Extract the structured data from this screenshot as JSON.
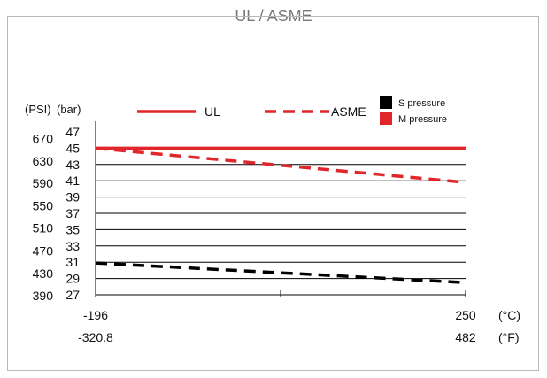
{
  "title": "UL / ASME",
  "colors": {
    "ul": "#e0262a",
    "asme": "#e0262a",
    "s_pressure": "#000000",
    "m_pressure": "#e0262a",
    "frame": "#b8b8b8"
  },
  "chart_data": {
    "type": "line",
    "title": "UL / ASME",
    "y_unit_left": "(PSI)",
    "y_unit_right": "(bar)",
    "x_unit_top": "(°C)",
    "x_unit_bottom": "(°F)",
    "x_ticks_c": [
      "-196",
      "250"
    ],
    "x_ticks_f": [
      "-320.8",
      "482"
    ],
    "xlim_c": [
      -196,
      250
    ],
    "ylim_bar": [
      27,
      47
    ],
    "y_ticks_bar": [
      "47",
      "45",
      "43",
      "41",
      "39",
      "37",
      "35",
      "33",
      "31",
      "29",
      "27"
    ],
    "y_ticks_psi": [
      "670",
      "630",
      "590",
      "550",
      "510",
      "470",
      "430",
      "390"
    ],
    "psi_bar_values": [
      46.2,
      43.4,
      40.7,
      37.9,
      35.2,
      32.4,
      29.6,
      26.9
    ],
    "grid": true,
    "legend": {
      "line_items": [
        {
          "label": "UL",
          "style": "solid"
        },
        {
          "label": "ASME",
          "style": "dashed"
        }
      ],
      "color_items": [
        {
          "label": "S pressure",
          "color": "#000000"
        },
        {
          "label": "M pressure",
          "color": "#e0262a"
        }
      ]
    },
    "series": [
      {
        "label": "UL",
        "color_key": "m_pressure",
        "style": "solid",
        "x": [
          -196,
          250
        ],
        "y": [
          45.0,
          45.0
        ]
      },
      {
        "label": "ASME",
        "color_key": "m_pressure",
        "style": "dashed",
        "x": [
          -196,
          250
        ],
        "y": [
          45.0,
          40.8
        ]
      },
      {
        "label": "ASME",
        "color_key": "s_pressure",
        "style": "dashed",
        "x": [
          -196,
          250
        ],
        "y": [
          30.9,
          28.5
        ]
      }
    ]
  }
}
